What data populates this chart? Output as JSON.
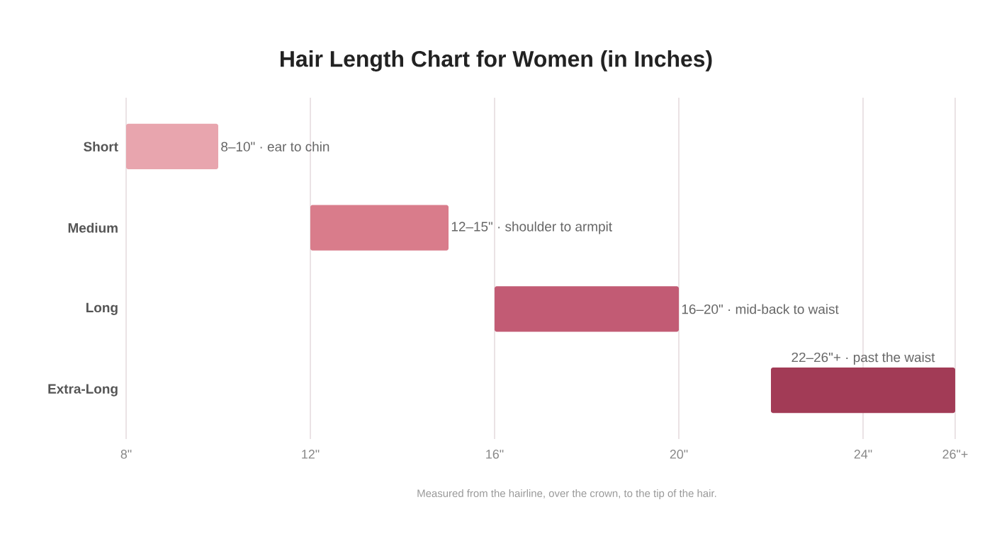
{
  "chart_data": {
    "type": "bar",
    "orientation": "horizontal",
    "title": "Hair Length Chart for Women (in Inches)",
    "categories": [
      "Short",
      "Medium",
      "Long",
      "Extra-Long"
    ],
    "base": [
      8,
      12,
      16,
      22
    ],
    "values": [
      2,
      3,
      4,
      4
    ],
    "colors": [
      "#e8a5ae",
      "#d97c8b",
      "#c25b74",
      "#a23b56"
    ],
    "value_labels": [
      "8–10\" · ear to chin",
      "12–15\" · shoulder to armpit",
      "16–20\" · mid-back to waist",
      "22–26\"+ · past the waist"
    ],
    "xlim": [
      8,
      26
    ],
    "xticks": [
      {
        "value": 8,
        "label": "8\""
      },
      {
        "value": 12,
        "label": "12\""
      },
      {
        "value": 16,
        "label": "16\""
      },
      {
        "value": 20,
        "label": "20\""
      },
      {
        "value": 24,
        "label": "24\""
      },
      {
        "value": 26,
        "label": "26\"+"
      }
    ],
    "grid": "x",
    "annotations": [
      "Measured from the hairline, over the crown, to the tip of the hair."
    ]
  }
}
